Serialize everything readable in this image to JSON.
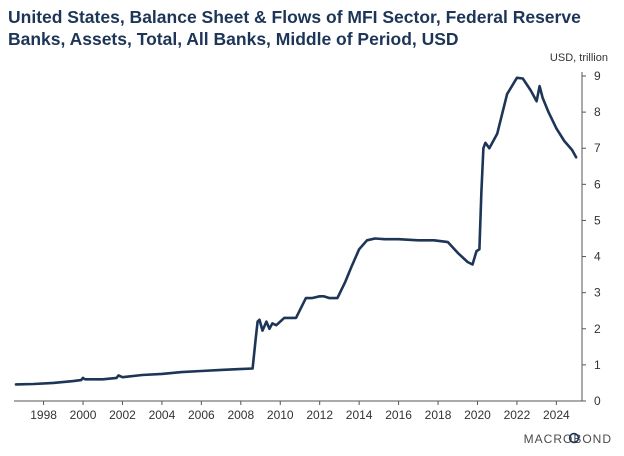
{
  "chart_data": {
    "type": "line",
    "title": "United States, Balance Sheet & Flows of MFI Sector, Federal Reserve Banks, Assets, Total, All Banks, Middle of Period, USD",
    "unit_label": "USD, trillion",
    "xlabel": "",
    "ylabel": "",
    "xlim": [
      1996.5,
      2025.3
    ],
    "ylim": [
      0,
      9
    ],
    "x_ticks": [
      "1998",
      "2000",
      "2002",
      "2004",
      "2006",
      "2008",
      "2010",
      "2012",
      "2014",
      "2016",
      "2018",
      "2020",
      "2022",
      "2024"
    ],
    "y_ticks": [
      "0",
      "1",
      "2",
      "3",
      "4",
      "5",
      "6",
      "7",
      "8",
      "9"
    ],
    "grid": false,
    "legend": "none",
    "source_logo": "MACROBOND",
    "series": [
      {
        "color": "#1d3557",
        "x": [
          1996.6,
          1997.5,
          1998.5,
          1999.5,
          1999.9,
          2000.0,
          2000.1,
          2001.0,
          2001.7,
          2001.8,
          2002.0,
          2003.0,
          2004.0,
          2005.0,
          2006.0,
          2007.0,
          2007.8,
          2008.6,
          2008.75,
          2008.85,
          2008.95,
          2009.1,
          2009.3,
          2009.45,
          2009.6,
          2009.8,
          2010.2,
          2010.8,
          2011.3,
          2011.6,
          2012.0,
          2012.2,
          2012.5,
          2012.9,
          2013.3,
          2013.6,
          2014.0,
          2014.4,
          2014.8,
          2015.3,
          2016.0,
          2017.0,
          2017.8,
          2018.5,
          2019.0,
          2019.5,
          2019.75,
          2019.95,
          2020.1,
          2020.2,
          2020.3,
          2020.4,
          2020.6,
          2021.0,
          2021.5,
          2022.0,
          2022.3,
          2022.7,
          2023.0,
          2023.15,
          2023.3,
          2023.6,
          2024.0,
          2024.4,
          2024.8,
          2025.0
        ],
        "values": [
          0.46,
          0.47,
          0.5,
          0.55,
          0.58,
          0.64,
          0.6,
          0.6,
          0.64,
          0.71,
          0.66,
          0.72,
          0.75,
          0.8,
          0.83,
          0.86,
          0.88,
          0.9,
          1.7,
          2.2,
          2.25,
          1.95,
          2.2,
          2.0,
          2.15,
          2.1,
          2.3,
          2.3,
          2.85,
          2.85,
          2.9,
          2.9,
          2.85,
          2.85,
          3.3,
          3.7,
          4.2,
          4.45,
          4.5,
          4.48,
          4.48,
          4.45,
          4.45,
          4.4,
          4.1,
          3.85,
          3.78,
          4.15,
          4.2,
          5.8,
          7.0,
          7.15,
          7.0,
          7.4,
          8.5,
          8.95,
          8.93,
          8.6,
          8.3,
          8.72,
          8.4,
          8.0,
          7.55,
          7.2,
          6.95,
          6.75
        ]
      }
    ]
  }
}
